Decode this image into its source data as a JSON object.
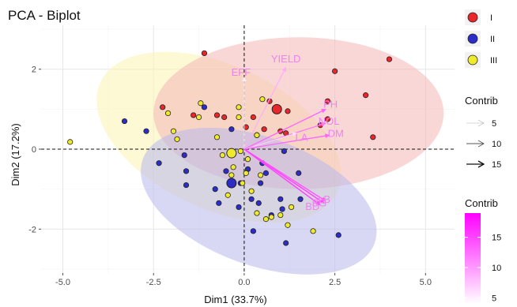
{
  "chart_data": {
    "type": "scatter",
    "title": "PCA - Biplot",
    "xlabel": "Dim1 (33.7%)",
    "ylabel": "Dim2 (17.2%)",
    "xlim": [
      -5.6,
      5.8
    ],
    "ylim": [
      -3.1,
      3.1
    ],
    "xticks": [
      -5.0,
      -2.5,
      0.0,
      2.5,
      5.0
    ],
    "xtick_labels": [
      "-5.0",
      "-2.5",
      "0.0",
      "2.5",
      "5.0"
    ],
    "yticks": [
      -2,
      0,
      2
    ],
    "ytick_labels": [
      "-2",
      "0",
      "2"
    ],
    "grid": true,
    "groups": [
      {
        "name": "I",
        "color": "#e8262b",
        "fill": "#f4b6b6",
        "ellipse": {
          "cx": 1.5,
          "cy": 0.9,
          "rx": 4.0,
          "ry": 1.9,
          "angle": 0
        },
        "centroid": [
          0.9,
          1.0
        ],
        "points": [
          [
            -1.1,
            2.4
          ],
          [
            2.5,
            1.95
          ],
          [
            4.0,
            2.25
          ],
          [
            3.35,
            1.35
          ],
          [
            2.3,
            1.2
          ],
          [
            3.55,
            0.3
          ],
          [
            -2.25,
            1.05
          ],
          [
            -1.4,
            0.85
          ],
          [
            -0.75,
            0.85
          ],
          [
            -0.55,
            0.8
          ],
          [
            0.25,
            0.8
          ],
          [
            0.7,
            1.2
          ],
          [
            1.2,
            0.95
          ],
          [
            0.55,
            0.5
          ],
          [
            1.0,
            0.45
          ],
          [
            0.35,
            0.35
          ],
          [
            1.15,
            0.4
          ],
          [
            0.05,
            0.55
          ],
          [
            2.3,
            0.75
          ],
          [
            2.1,
            0.6
          ]
        ]
      },
      {
        "name": "II",
        "color": "#2c2cc8",
        "fill": "#b8b8ec",
        "ellipse": {
          "cx": 0.4,
          "cy": -1.3,
          "rx": 3.4,
          "ry": 1.6,
          "angle": -20
        },
        "centroid": [
          -0.35,
          -0.85
        ],
        "points": [
          [
            -3.3,
            0.7
          ],
          [
            -2.7,
            0.45
          ],
          [
            -2.35,
            -0.35
          ],
          [
            -1.6,
            -0.55
          ],
          [
            -1.6,
            -0.9
          ],
          [
            -1.65,
            -0.15
          ],
          [
            -0.8,
            -1.0
          ],
          [
            -0.7,
            -1.35
          ],
          [
            -0.5,
            -0.55
          ],
          [
            -0.1,
            -0.85
          ],
          [
            -0.15,
            -1.45
          ],
          [
            0.1,
            -0.5
          ],
          [
            0.2,
            -1.25
          ],
          [
            0.45,
            -0.85
          ],
          [
            0.5,
            -0.35
          ],
          [
            0.4,
            -1.35
          ],
          [
            0.75,
            -1.65
          ],
          [
            1.0,
            -1.25
          ],
          [
            1.5,
            -0.6
          ],
          [
            1.55,
            -1.25
          ],
          [
            1.05,
            -1.5
          ],
          [
            0.25,
            -2.05
          ],
          [
            1.15,
            -2.35
          ],
          [
            2.6,
            -2.15
          ],
          [
            -1.1,
            1.05
          ],
          [
            -0.35,
            0.5
          ],
          [
            0.6,
            -0.6
          ],
          [
            1.1,
            -0.05
          ]
        ]
      },
      {
        "name": "III",
        "color": "#f0ea2c",
        "fill": "#fbf4b0",
        "ellipse": {
          "cx": -0.7,
          "cy": 0.3,
          "rx": 3.6,
          "ry": 1.8,
          "angle": -25
        },
        "centroid": [
          -0.35,
          -0.1
        ],
        "points": [
          [
            -4.8,
            0.18
          ],
          [
            -2.1,
            0.9
          ],
          [
            -1.95,
            0.45
          ],
          [
            -1.85,
            0.25
          ],
          [
            -1.25,
            0.8
          ],
          [
            -1.2,
            1.15
          ],
          [
            -0.15,
            1.05
          ],
          [
            -0.15,
            0.8
          ],
          [
            -0.75,
            0.3
          ],
          [
            -0.6,
            -0.15
          ],
          [
            -0.3,
            -0.45
          ],
          [
            -0.35,
            -0.65
          ],
          [
            0.1,
            -0.25
          ],
          [
            0.05,
            -0.6
          ],
          [
            -0.1,
            -0.05
          ],
          [
            0.35,
            0.35
          ],
          [
            0.45,
            -0.65
          ],
          [
            -0.45,
            -1.15
          ],
          [
            0.35,
            -1.6
          ],
          [
            0.6,
            -1.75
          ],
          [
            0.75,
            -1.7
          ],
          [
            1.0,
            -1.65
          ],
          [
            1.3,
            -1.45
          ],
          [
            1.2,
            -1.9
          ],
          [
            1.9,
            -2.05
          ],
          [
            0.2,
            -1.05
          ],
          [
            0.5,
            1.25
          ],
          [
            -0.05,
            -0.85
          ]
        ]
      }
    ],
    "variables": [
      {
        "name": "YIELD",
        "x": 1.15,
        "y": 2.05,
        "contrib": 9
      },
      {
        "name": "EFF",
        "x": 0.0,
        "y": 1.8,
        "contrib": 5
      },
      {
        "name": "PH",
        "x": 2.25,
        "y": 1.0,
        "contrib": 13
      },
      {
        "name": "NOL",
        "x": 2.25,
        "y": 0.65,
        "contrib": 12
      },
      {
        "name": "LA",
        "x": 1.45,
        "y": 0.4,
        "contrib": 6
      },
      {
        "name": "DM",
        "x": 2.35,
        "y": 0.35,
        "contrib": 13
      },
      {
        "name": "LB",
        "x": 2.25,
        "y": -1.3,
        "contrib": 14
      },
      {
        "name": "BG",
        "x": 2.2,
        "y": -1.35,
        "contrib": 15
      },
      {
        "name": "BD",
        "x": 2.1,
        "y": -1.4,
        "contrib": 15
      }
    ],
    "legend": {
      "position": "right",
      "group_entries": [
        "I",
        "II",
        "III"
      ],
      "contrib_title": "Contrib",
      "contrib_arrow_entries": [
        "5",
        "10",
        "15"
      ],
      "contrib_color_title": "Contrib",
      "contrib_color_ticks": [
        "15",
        "10",
        "5"
      ],
      "contrib_color_range": [
        4,
        19
      ],
      "contrib_color_low": "#ffffff",
      "contrib_color_high": "#ff00ff"
    }
  }
}
